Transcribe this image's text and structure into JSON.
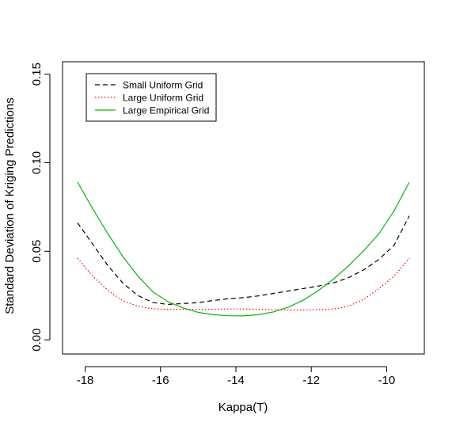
{
  "chart_data": {
    "type": "line",
    "title": "",
    "xlabel": "Kappa(T)",
    "ylabel": "Standard Deviation of Kriging Predictions",
    "xlim": [
      -18.6,
      -9.0
    ],
    "ylim": [
      -0.008,
      0.157
    ],
    "x_ticks": [
      -18,
      -16,
      -14,
      -12,
      -10
    ],
    "x_tick_labels": [
      "-18",
      "-16",
      "-14",
      "-12",
      "-10"
    ],
    "y_ticks": [
      0.0,
      0.05,
      0.1,
      0.15
    ],
    "y_tick_labels": [
      "0.00",
      "0.05",
      "0.10",
      "0.15"
    ],
    "grid": false,
    "legend_position": "top-left",
    "series": [
      {
        "name": "Small Uniform Grid",
        "color": "#000000",
        "dash": "dashed",
        "x": [
          -18.2,
          -17.8,
          -17.4,
          -17.0,
          -16.6,
          -16.2,
          -15.8,
          -15.4,
          -15.0,
          -14.6,
          -14.2,
          -13.8,
          -13.4,
          -13.0,
          -12.6,
          -12.2,
          -11.8,
          -11.4,
          -11.0,
          -10.6,
          -10.2,
          -9.8,
          -9.4
        ],
        "y": [
          0.066,
          0.054,
          0.042,
          0.032,
          0.025,
          0.021,
          0.02,
          0.0205,
          0.021,
          0.0222,
          0.0232,
          0.0238,
          0.0248,
          0.0262,
          0.0276,
          0.029,
          0.0304,
          0.0322,
          0.0352,
          0.0396,
          0.0455,
          0.0535,
          0.07
        ]
      },
      {
        "name": "Large Uniform Grid",
        "color": "#ff0000",
        "dash": "dotted",
        "x": [
          -18.2,
          -17.8,
          -17.4,
          -17.0,
          -16.6,
          -16.2,
          -15.8,
          -15.4,
          -15.0,
          -14.6,
          -14.2,
          -13.8,
          -13.4,
          -13.0,
          -12.6,
          -12.2,
          -11.8,
          -11.4,
          -11.0,
          -10.6,
          -10.2,
          -9.8,
          -9.4
        ],
        "y": [
          0.046,
          0.036,
          0.028,
          0.022,
          0.019,
          0.0175,
          0.0172,
          0.0172,
          0.0172,
          0.0172,
          0.0174,
          0.0174,
          0.0172,
          0.017,
          0.0168,
          0.0168,
          0.017,
          0.0174,
          0.019,
          0.023,
          0.029,
          0.036,
          0.046
        ]
      },
      {
        "name": "Large Empirical Grid",
        "color": "#00bb00",
        "dash": "solid",
        "x": [
          -18.2,
          -17.8,
          -17.4,
          -17.0,
          -16.6,
          -16.2,
          -15.8,
          -15.4,
          -15.0,
          -14.6,
          -14.2,
          -13.8,
          -13.4,
          -13.0,
          -12.6,
          -12.2,
          -11.8,
          -11.4,
          -11.0,
          -10.6,
          -10.2,
          -9.8,
          -9.4
        ],
        "y": [
          0.089,
          0.074,
          0.06,
          0.047,
          0.036,
          0.027,
          0.0215,
          0.018,
          0.0155,
          0.0142,
          0.0136,
          0.0135,
          0.0142,
          0.0158,
          0.0185,
          0.0225,
          0.028,
          0.0345,
          0.042,
          0.0505,
          0.06,
          0.073,
          0.089
        ]
      }
    ]
  }
}
